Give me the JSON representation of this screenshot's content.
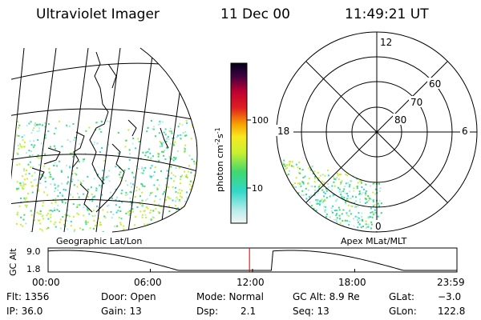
{
  "header": {
    "instrument": "Ultraviolet Imager",
    "date": "11 Dec 00",
    "time": "11:49:21 UT"
  },
  "colorbar": {
    "unit_label": "photon cm",
    "unit_exp1": "-2",
    "unit_mid": "s",
    "unit_exp2": "-1",
    "ticks": [
      "100",
      "10"
    ]
  },
  "panels": {
    "left_label": "Geographic Lat/Lon",
    "right_label": "Apex MLat/MLT"
  },
  "polar": {
    "lat_labels": [
      "60",
      "70",
      "80"
    ],
    "mlt_labels": {
      "top": "12",
      "left": "18",
      "right": "6",
      "bottom": "0"
    }
  },
  "altitude_plot": {
    "ylabel": "GC Alt",
    "yticks": [
      "9.0",
      "1.8"
    ],
    "xticks": [
      "00:00",
      "06:00",
      "12:00",
      "18:00",
      "23:59"
    ],
    "current_marker_hours": 11.82,
    "marker_color": "#cc0000"
  },
  "status": {
    "flt": "Flt: 1356",
    "ip": "IP: 36.0",
    "door": "Door: Open",
    "gain": "Gain: 13",
    "mode": "Mode: Normal",
    "dsp_label": "Dsp:",
    "dsp_value": "2.1",
    "gcalt": "GC Alt: 8.9 Re",
    "seq": "Seq: 13",
    "glat_label": "GLat:",
    "glat_value": "−3.0",
    "glon_label": "GLon:",
    "glon_value": "122.8"
  }
}
